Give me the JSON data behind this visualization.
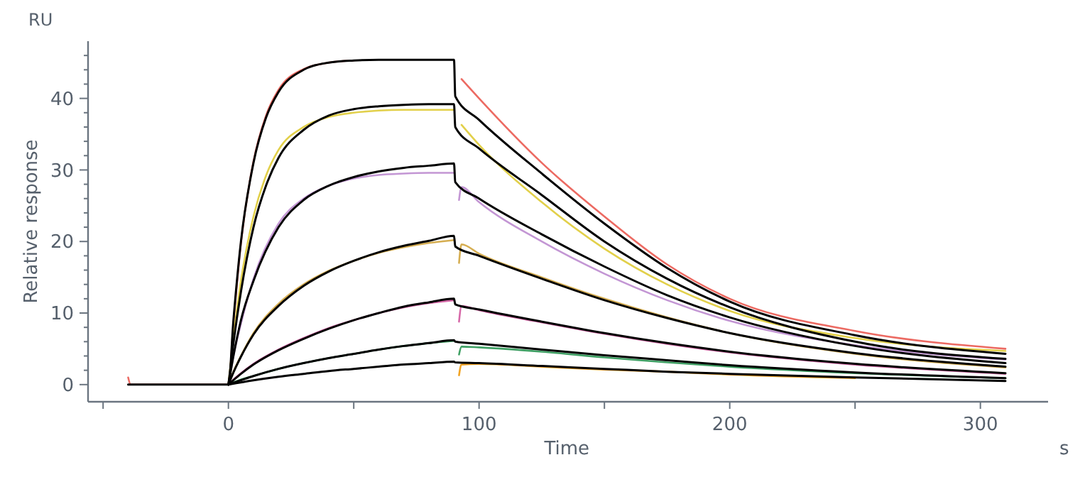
{
  "chart_data": {
    "type": "line",
    "xlabel": "Time",
    "ylabel": "Relative response",
    "annotations": [
      "RU",
      "s"
    ],
    "xlim": [
      -56,
      327
    ],
    "ylim": [
      -2.4,
      48
    ],
    "xticks": [
      {
        "value": -50,
        "label": null
      },
      0,
      {
        "value": 50,
        "label": null
      },
      100,
      {
        "value": 150,
        "label": null
      },
      200,
      {
        "value": 250,
        "label": null
      },
      300
    ],
    "yticks": [
      0,
      {
        "value": 2,
        "label": null
      },
      {
        "value": 4,
        "label": null
      },
      {
        "value": 6,
        "label": null
      },
      {
        "value": 8,
        "label": null
      },
      10,
      {
        "value": 12,
        "label": null
      },
      {
        "value": 14,
        "label": null
      },
      {
        "value": 16,
        "label": null
      },
      {
        "value": 18,
        "label": null
      },
      20,
      {
        "value": 22,
        "label": null
      },
      {
        "value": 24,
        "label": null
      },
      {
        "value": 26,
        "label": null
      },
      {
        "value": 28,
        "label": null
      },
      30,
      {
        "value": 32,
        "label": null
      },
      {
        "value": 34,
        "label": null
      },
      {
        "value": 36,
        "label": null
      },
      {
        "value": 38,
        "label": null
      },
      40,
      {
        "value": 42,
        "label": null
      },
      {
        "value": 44,
        "label": null
      },
      {
        "value": 46,
        "label": null
      }
    ],
    "grid": false,
    "marker": "none",
    "line_style": "solid",
    "series": [
      {
        "color": "#ec6a62",
        "x": [
          -40,
          -39,
          -38,
          0,
          2,
          5,
          10,
          15,
          20,
          30,
          40,
          50,
          60,
          70,
          80,
          90,
          91.5,
          93,
          100,
          125,
          150,
          175,
          200,
          250,
          310
        ],
        "values": [
          1.0,
          0,
          0,
          0,
          8.5,
          19.8,
          31.2,
          37.6,
          41.2,
          44.1,
          45.0,
          45.3,
          null,
          null,
          null,
          null,
          null,
          42.7,
          40.0,
          31.0,
          23.5,
          16.8,
          12.0,
          7.5,
          5.0
        ]
      },
      {
        "color": "#e2d04a",
        "x": [
          0,
          2,
          5,
          10,
          15,
          20,
          30,
          40,
          50,
          60,
          70,
          80,
          90,
          91.5,
          93,
          100,
          125,
          150,
          175,
          200,
          250,
          310
        ],
        "values": [
          0,
          6.5,
          14.5,
          23.5,
          29.2,
          32.8,
          36.0,
          37.4,
          38.0,
          38.3,
          38.4,
          38.4,
          38.4,
          null,
          36.3,
          33.5,
          25.5,
          19.0,
          14.0,
          10.3,
          6.5,
          4.7
        ]
      },
      {
        "color": "#c396d4",
        "x": [
          0,
          2,
          5,
          10,
          20,
          30,
          40,
          50,
          60,
          70,
          80,
          90,
          91.5,
          92,
          93,
          100,
          125,
          150,
          175,
          200,
          250,
          310
        ],
        "values": [
          0,
          4.0,
          8.5,
          14.8,
          22.5,
          26.0,
          27.8,
          28.8,
          29.3,
          29.5,
          29.6,
          29.6,
          null,
          25.8,
          27.6,
          25.5,
          20.0,
          15.5,
          11.8,
          8.9,
          5.5,
          3.5
        ]
      },
      {
        "color": "#d6ae52",
        "x": [
          0,
          2,
          5,
          10,
          20,
          30,
          40,
          50,
          60,
          70,
          80,
          90,
          91.5,
          92,
          93,
          100,
          125,
          150,
          175,
          200,
          250,
          310
        ],
        "values": [
          0,
          1.8,
          4.0,
          7.2,
          11.3,
          14.0,
          15.9,
          17.3,
          18.4,
          19.2,
          19.8,
          20.2,
          null,
          17.0,
          19.6,
          18.3,
          15.0,
          12.0,
          9.4,
          7.2,
          4.3,
          2.4
        ]
      },
      {
        "color": "#d668a8",
        "x": [
          0,
          2,
          5,
          10,
          20,
          30,
          40,
          50,
          60,
          70,
          80,
          90,
          91.5,
          92,
          93,
          100,
          125,
          150,
          175,
          200,
          250,
          310
        ],
        "values": [
          0,
          0.7,
          1.6,
          2.9,
          4.9,
          6.5,
          7.9,
          9.0,
          10.0,
          10.8,
          11.4,
          11.8,
          null,
          8.8,
          11.0,
          10.4,
          8.7,
          7.1,
          5.7,
          4.5,
          2.8,
          1.5
        ]
      },
      {
        "color": "#3fa064",
        "x": [
          0,
          5,
          10,
          20,
          30,
          40,
          50,
          60,
          70,
          80,
          90,
          91.5,
          92,
          93,
          100,
          125,
          150,
          175,
          200,
          250,
          310
        ],
        "values": [
          0,
          0.7,
          1.2,
          2.2,
          3.0,
          3.7,
          4.3,
          4.9,
          5.4,
          5.8,
          6.1,
          null,
          4.2,
          5.3,
          5.2,
          4.6,
          3.8,
          3.1,
          2.5,
          1.6,
          0.9
        ]
      },
      {
        "color": "#f2a424",
        "x": [
          92,
          93,
          100,
          125,
          150,
          175,
          200,
          250
        ],
        "values": [
          1.3,
          2.8,
          2.9,
          2.5,
          2.1,
          1.8,
          1.4,
          0.9
        ]
      },
      {
        "color": "#000000",
        "x": [
          -40,
          0,
          2,
          5,
          10,
          15,
          20,
          30,
          40,
          50,
          60,
          70,
          80,
          90,
          90.5,
          100,
          125,
          150,
          175,
          200,
          250,
          310
        ],
        "values": [
          0,
          0,
          9.0,
          20.0,
          31.0,
          37.3,
          40.9,
          44.0,
          45.0,
          45.3,
          45.4,
          45.4,
          45.4,
          45.4,
          40.3,
          37.0,
          29.5,
          22.5,
          16.3,
          11.6,
          6.9,
          4.3
        ]
      },
      {
        "color": "#000000",
        "x": [
          0,
          2,
          5,
          10,
          15,
          20,
          30,
          40,
          50,
          60,
          70,
          80,
          90,
          90.5,
          100,
          125,
          150,
          175,
          200,
          250,
          310
        ],
        "values": [
          0,
          5.8,
          13.0,
          22.0,
          27.8,
          31.7,
          35.6,
          37.6,
          38.5,
          38.9,
          39.1,
          39.2,
          39.2,
          36.0,
          33.0,
          26.5,
          20.0,
          14.8,
          10.8,
          6.0,
          3.6
        ]
      },
      {
        "color": "#000000",
        "x": [
          0,
          2,
          5,
          10,
          20,
          30,
          40,
          50,
          60,
          70,
          80,
          90,
          90.5,
          100,
          125,
          150,
          175,
          200,
          250,
          310
        ],
        "values": [
          0,
          4.0,
          9.0,
          14.5,
          22.0,
          25.8,
          27.8,
          29.0,
          29.8,
          30.3,
          30.6,
          30.9,
          28.3,
          26.0,
          21.0,
          16.5,
          12.5,
          9.4,
          5.4,
          3.0
        ]
      },
      {
        "color": "#000000",
        "x": [
          0,
          2,
          5,
          10,
          20,
          30,
          40,
          50,
          60,
          70,
          80,
          90,
          90.5,
          100,
          125,
          150,
          175,
          200,
          250,
          310
        ],
        "values": [
          0,
          1.7,
          3.9,
          7.0,
          11.0,
          13.8,
          15.8,
          17.3,
          18.5,
          19.4,
          20.1,
          20.8,
          19.3,
          18.0,
          14.8,
          11.8,
          9.3,
          7.2,
          4.4,
          2.5
        ]
      },
      {
        "color": "#000000",
        "x": [
          0,
          5,
          10,
          20,
          30,
          40,
          50,
          60,
          70,
          80,
          90,
          90.5,
          100,
          125,
          150,
          175,
          200,
          250,
          310
        ],
        "values": [
          0,
          1.5,
          2.8,
          4.8,
          6.4,
          7.8,
          9.0,
          10.0,
          10.9,
          11.5,
          12.0,
          11.2,
          10.5,
          8.8,
          7.2,
          5.8,
          4.6,
          2.9,
          1.6
        ]
      },
      {
        "color": "#000000",
        "x": [
          0,
          10,
          20,
          30,
          40,
          50,
          60,
          70,
          80,
          90,
          90.5,
          100,
          125,
          150,
          175,
          200,
          250,
          310
        ],
        "values": [
          0,
          1.2,
          2.2,
          3.0,
          3.7,
          4.3,
          4.9,
          5.4,
          5.8,
          6.2,
          6.0,
          5.7,
          4.9,
          4.1,
          3.4,
          2.7,
          1.7,
          0.9
        ]
      },
      {
        "color": "#000000",
        "x": [
          0,
          10,
          20,
          30,
          40,
          50,
          60,
          70,
          80,
          90,
          90.5,
          100,
          125,
          150,
          175,
          200,
          250,
          310
        ],
        "values": [
          0,
          0.6,
          1.1,
          1.5,
          1.9,
          2.2,
          2.5,
          2.8,
          3.0,
          3.2,
          3.1,
          3.0,
          2.6,
          2.2,
          1.8,
          1.5,
          1.0,
          0.5
        ]
      }
    ]
  }
}
